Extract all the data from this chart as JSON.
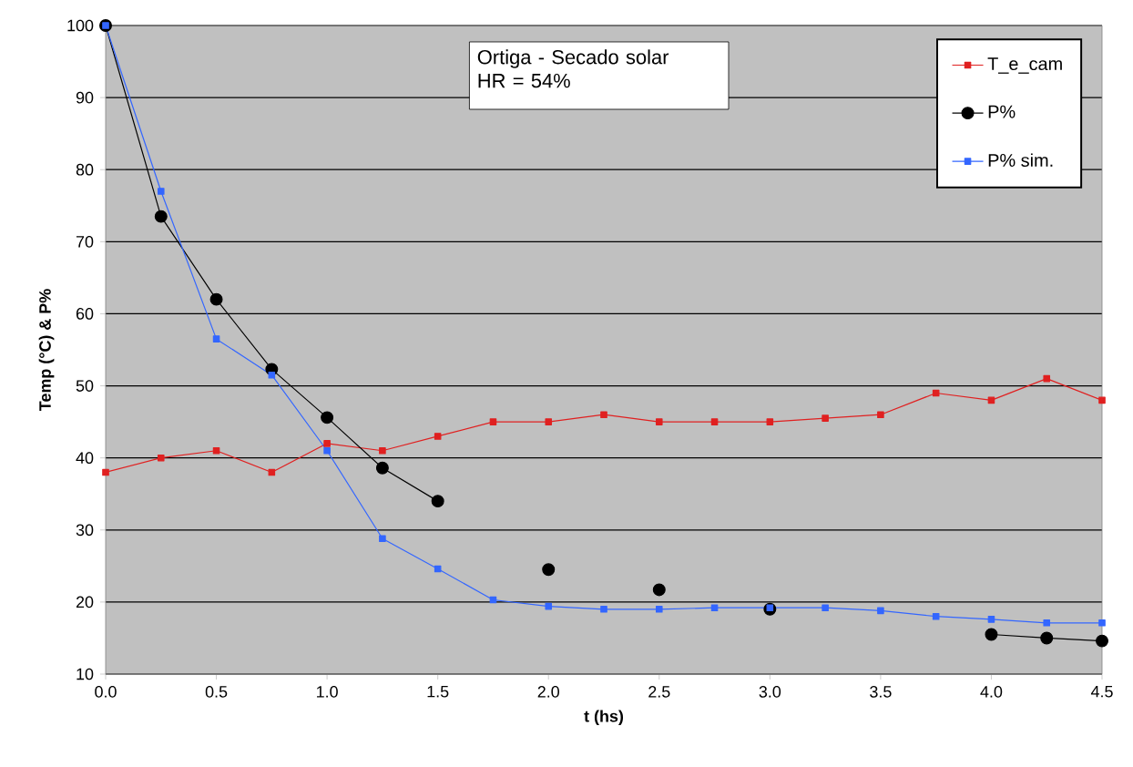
{
  "chart_data": {
    "type": "line",
    "xlabel": "t (hs)",
    "ylabel": "Temp (°C) & P%",
    "annotations": [
      "Ortiga - Secado solar",
      "HR = 54%"
    ],
    "x": [
      0,
      0.25,
      0.5,
      0.75,
      1,
      1.25,
      1.5,
      1.75,
      2,
      2.25,
      2.5,
      2.75,
      3,
      3.25,
      3.5,
      3.75,
      4,
      4.25,
      4.5
    ],
    "series": [
      {
        "name": "T_e_cam",
        "color": "#e02020",
        "marker": "square",
        "values": [
          38,
          40,
          41,
          38,
          42,
          41,
          43,
          45,
          45,
          46,
          45,
          45,
          45,
          45.5,
          46,
          49,
          48,
          51,
          48
        ]
      },
      {
        "name": "P%",
        "color": "#000000",
        "marker": "circle",
        "values": [
          100,
          73.5,
          62,
          52.3,
          45.6,
          38.6,
          34,
          null,
          24.5,
          null,
          21.7,
          null,
          19,
          null,
          null,
          null,
          15.5,
          15,
          14.6
        ]
      },
      {
        "name": "P% sim.",
        "color": "#3366ff",
        "marker": "square",
        "values": [
          100,
          77,
          56.5,
          51.5,
          41,
          28.8,
          24.6,
          20.3,
          19.4,
          19,
          19,
          19.2,
          19.2,
          19.2,
          18.8,
          18,
          17.6,
          17.1,
          17.1
        ]
      }
    ],
    "xlim": [
      0,
      4.5
    ],
    "ylim": [
      10,
      100
    ],
    "xticks": [
      {
        "value": 0,
        "label": "0.0"
      },
      {
        "value": 0.5,
        "label": "0.5"
      },
      {
        "value": 1,
        "label": "1.0"
      },
      {
        "value": 1.5,
        "label": "1.5"
      },
      {
        "value": 2,
        "label": "2.0"
      },
      {
        "value": 2.5,
        "label": "2.5"
      },
      {
        "value": 3,
        "label": "3.0"
      },
      {
        "value": 3.5,
        "label": "3.5"
      },
      {
        "value": 4,
        "label": "4.0"
      },
      {
        "value": 4.5,
        "label": "4.5"
      }
    ],
    "yticks": [
      10,
      20,
      30,
      40,
      50,
      60,
      70,
      80,
      90,
      100
    ],
    "grid": "y",
    "legend": "top right"
  }
}
